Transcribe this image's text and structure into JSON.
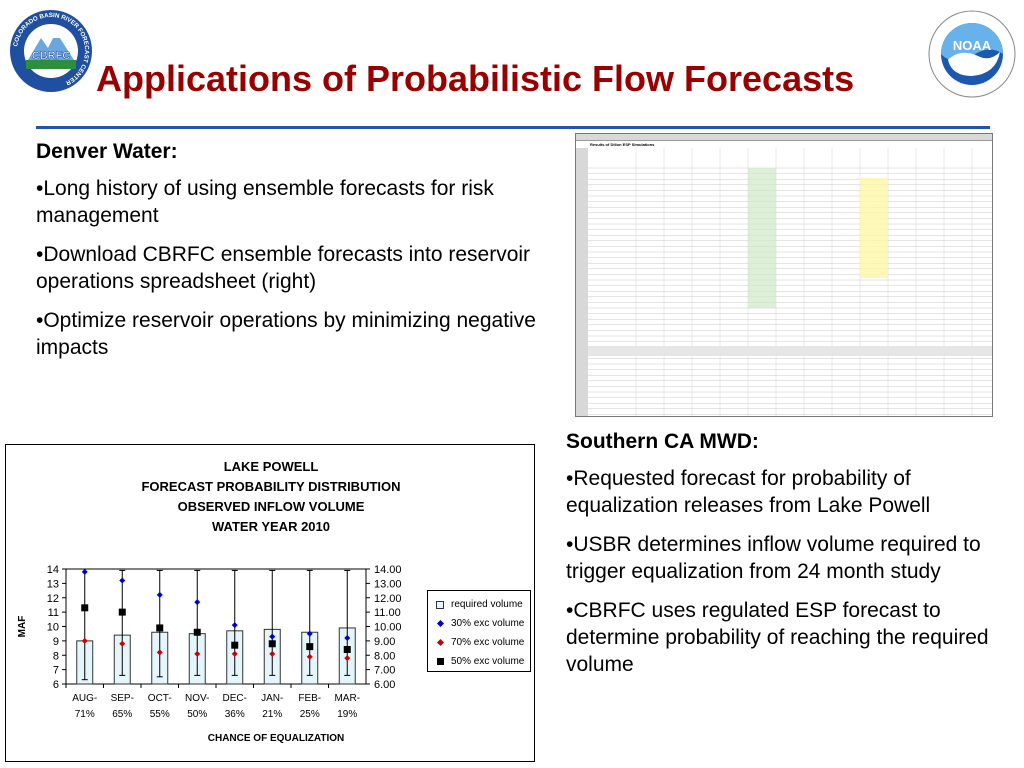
{
  "slide": {
    "title": "Applications of Probabilistic Flow Forecasts",
    "left_logo": {
      "icon": "cbrfc-logo",
      "ring_text": "COLORADO BASIN RIVER FORECAST CENTER",
      "center_text": "CBRFC"
    },
    "right_logo": {
      "icon": "noaa-logo",
      "center_text": "NOAA"
    }
  },
  "denver": {
    "heading": "Denver Water:",
    "bullets": [
      "•Long history of using ensemble forecasts for risk management",
      "•Download CBRFC ensemble forecasts into reservoir operations spreadsheet (right)",
      "•Optimize reservoir operations by minimizing negative impacts"
    ]
  },
  "mwd": {
    "heading": "Southern CA MWD:",
    "bullets": [
      "•Requested forecast for probability of equalization releases from Lake Powell",
      "•USBR determines inflow volume required to trigger equalization from 24 month study",
      "•CBRFC uses regulated ESP forecast to determine probability of reaching the required volume"
    ]
  },
  "spreadsheet": {
    "title": "Results of Dillon ESP Simulations"
  },
  "chart": {
    "title_lines": [
      "LAKE POWELL",
      "FORECAST PROBABILITY DISTRIBUTION",
      "OBSERVED INFLOW VOLUME",
      "WATER YEAR 2010"
    ],
    "ylabel": "MAF",
    "xlabel": "CHANCE OF EQUALIZATION",
    "left_ticks": [
      "6",
      "7",
      "8",
      "9",
      "10",
      "11",
      "12",
      "13",
      "14"
    ],
    "right_ticks": [
      "6.00",
      "7.00",
      "8.00",
      "9.00",
      "10.00",
      "11.00",
      "12.00",
      "13.00",
      "14.00"
    ],
    "legend": [
      "required volume",
      "30% exc volume",
      "70% exc volume",
      "50% exc volume"
    ],
    "colors": {
      "bar": "#e4f6fc",
      "exc30": "#0000cc",
      "exc70": "#cc0000",
      "exc50": "#000000",
      "title": "#990000",
      "rule": "#2255aa"
    }
  },
  "chart_data": {
    "type": "bar",
    "title": "LAKE POWELL FORECAST PROBABILITY DISTRIBUTION OBSERVED INFLOW VOLUME WATER YEAR 2010",
    "xlabel": "CHANCE OF EQUALIZATION",
    "ylabel": "MAF",
    "ylim": [
      6,
      14
    ],
    "categories": [
      "AUG-",
      "SEP-",
      "OCT-",
      "NOV-",
      "DEC-",
      "JAN-",
      "FEB-",
      "MAR-"
    ],
    "category_pct": [
      "71%",
      "65%",
      "55%",
      "50%",
      "36%",
      "21%",
      "25%",
      "19%"
    ],
    "series": [
      {
        "name": "required volume",
        "type": "bar",
        "values": [
          9.0,
          9.4,
          9.6,
          9.5,
          9.7,
          9.8,
          9.6,
          9.9
        ]
      },
      {
        "name": "30% exc volume",
        "type": "marker",
        "values": [
          13.8,
          13.2,
          12.2,
          11.7,
          10.1,
          9.3,
          9.5,
          9.2
        ]
      },
      {
        "name": "70% exc volume",
        "type": "marker",
        "values": [
          9.0,
          8.8,
          8.2,
          8.1,
          8.1,
          8.1,
          7.9,
          7.8
        ]
      },
      {
        "name": "50% exc volume",
        "type": "marker",
        "values": [
          11.3,
          11.0,
          9.9,
          9.6,
          8.7,
          8.8,
          8.6,
          8.4
        ]
      }
    ],
    "error_bar_low": [
      6.3,
      6.6,
      6.5,
      6.6,
      6.6,
      6.6,
      6.6,
      6.6
    ],
    "error_bar_high": [
      14.0,
      13.9,
      13.9,
      13.9,
      13.9,
      13.9,
      13.9,
      13.9
    ],
    "grid": false,
    "legend_position": "right"
  }
}
